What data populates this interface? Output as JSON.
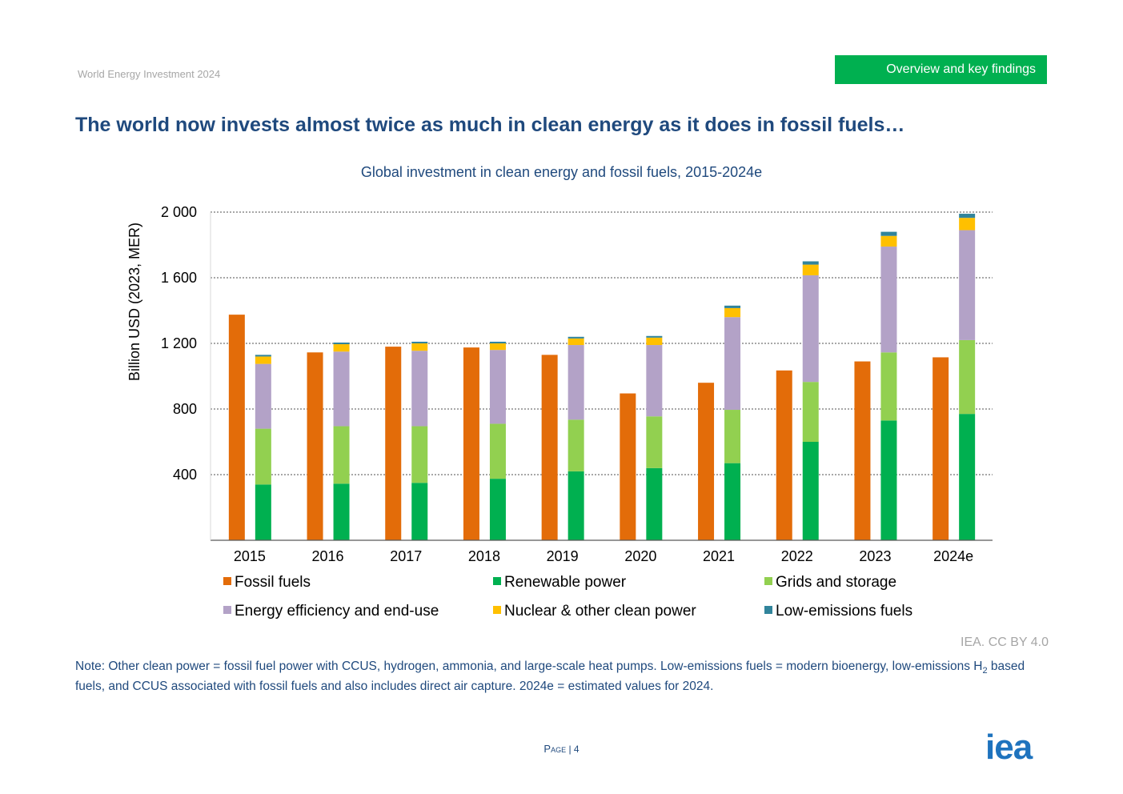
{
  "header": {
    "report_title": "World Energy Investment 2024",
    "section_tab": "Overview and key findings"
  },
  "page_title": "The world now invests almost twice as much in clean energy as it does in fossil fuels…",
  "chart_data": {
    "type": "bar",
    "title": "Global investment in clean energy and fossil fuels, 2015-2024e",
    "ylabel": "Billion USD (2023, MER)",
    "xlabel": "",
    "ylim": [
      0,
      2000
    ],
    "yticks": [
      400,
      800,
      1200,
      1600,
      2000
    ],
    "ytick_labels": [
      "400",
      "800",
      "1 200",
      "1 600",
      "2 000"
    ],
    "grid": true,
    "legend_position": "bottom",
    "categories": [
      "2015",
      "2016",
      "2017",
      "2018",
      "2019",
      "2020",
      "2021",
      "2022",
      "2023",
      "2024e"
    ],
    "fossil": {
      "name": "Fossil fuels",
      "color": "#e36c09",
      "values": [
        1375,
        1145,
        1180,
        1175,
        1130,
        895,
        960,
        1035,
        1090,
        1115
      ]
    },
    "clean_series": [
      {
        "name": "Renewable power",
        "color": "#00b050",
        "values": [
          340,
          345,
          350,
          375,
          420,
          440,
          470,
          600,
          730,
          770
        ]
      },
      {
        "name": "Grids and storage",
        "color": "#92d050",
        "values": [
          340,
          350,
          345,
          335,
          315,
          315,
          325,
          365,
          415,
          450
        ]
      },
      {
        "name": "Energy efficiency and end-use",
        "color": "#b3a2c7",
        "values": [
          395,
          455,
          460,
          450,
          455,
          435,
          565,
          650,
          645,
          670
        ]
      },
      {
        "name": "Nuclear & other clean power",
        "color": "#ffc000",
        "values": [
          45,
          45,
          45,
          40,
          40,
          45,
          55,
          65,
          65,
          75
        ]
      },
      {
        "name": "Low-emissions fuels",
        "color": "#31849b",
        "values": [
          10,
          10,
          10,
          10,
          10,
          10,
          15,
          20,
          25,
          25
        ]
      }
    ],
    "legend": [
      "Fossil fuels",
      "Renewable power",
      "Grids and storage",
      "Energy efficiency and end-use",
      "Nuclear & other clean power",
      "Low-emissions fuels"
    ]
  },
  "credit": "IEA. CC BY 4.0",
  "note": {
    "part1": "Note: Other clean power = fossil fuel power with CCUS, hydrogen, ammonia, and large-scale heat pumps. Low-emissions fuels = modern bioenergy, low-emissions H",
    "subscript": "2",
    "part2": " based fuels, and CCUS associated with fossil fuels and also includes direct air capture. 2024e = estimated values for 2024."
  },
  "footer": {
    "page_word": "Page",
    "page_number": "| 4",
    "logo_text": "iea",
    "logo_color": "#1e73be"
  }
}
